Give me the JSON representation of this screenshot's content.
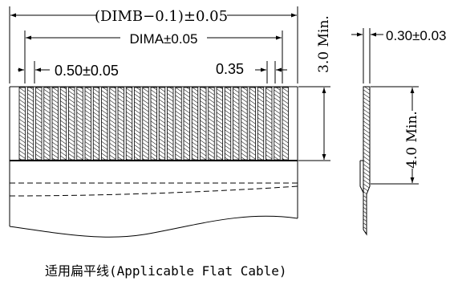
{
  "labels": {
    "dim_b": "(DIMB−0.1)±0.05",
    "dim_a": "DIMA±0.05",
    "pitch": "0.50±0.05",
    "pad_width": "0.35",
    "min_3": "3.0 Min.",
    "thickness": "0.30±0.03",
    "min_4": "4.0 Min.",
    "caption": "适用扁平线(Applicable Flat Cable)"
  }
}
